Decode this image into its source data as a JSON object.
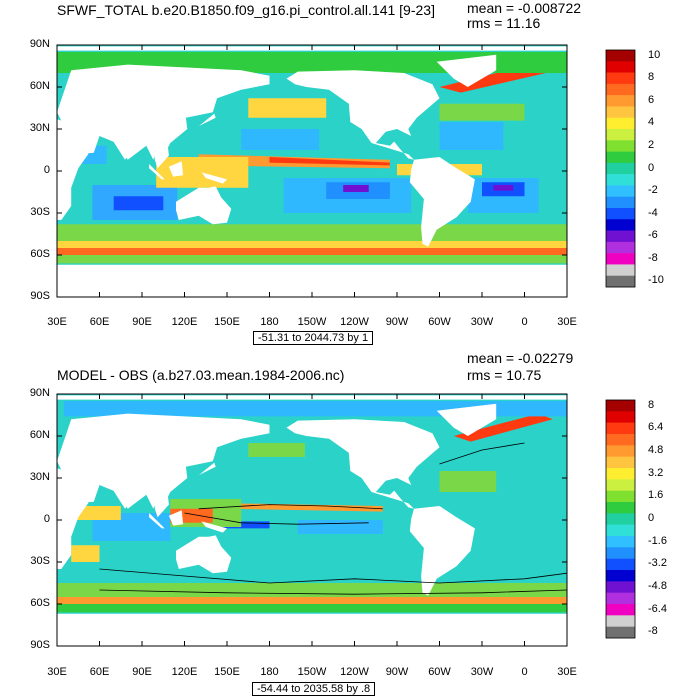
{
  "chart_data": [
    {
      "type": "heatmap",
      "title": "SFWF_TOTAL b.e20.B1850.f09_g16.pi_control.all.141 [9-23]",
      "mean": "mean = -0.008722",
      "rms": "rms = 11.16",
      "range_note": "-51.31 to 2044.73 by 1",
      "lat_ticks": [
        "90N",
        "60N",
        "30N",
        "0",
        "30S",
        "60S",
        "90S"
      ],
      "lon_ticks": [
        "30E",
        "60E",
        "90E",
        "120E",
        "150E",
        "180",
        "150W",
        "120W",
        "90W",
        "60W",
        "30W",
        "0",
        "30E"
      ],
      "colorbar_labels": [
        "10",
        "8",
        "6",
        "4",
        "2",
        "0",
        "-2",
        "-4",
        "-6",
        "-8",
        "-10"
      ],
      "colorbar_colors": [
        "#a50000",
        "#e00000",
        "#ff3a10",
        "#ff6a20",
        "#ff9a30",
        "#ffc440",
        "#ffee30",
        "#ccf040",
        "#80e030",
        "#30cc40",
        "#20d0a0",
        "#30e0d8",
        "#30c0ff",
        "#2090ff",
        "#1050ff",
        "#0000d0",
        "#7010d0",
        "#b030e0",
        "#f000c0",
        "#d0d0d0",
        "#707070"
      ],
      "xlim": [
        30,
        390
      ],
      "ylim": [
        -90,
        90
      ]
    },
    {
      "type": "heatmap",
      "title": "MODEL - OBS (a.b27.03.mean.1984-2006.nc)",
      "mean": "mean = -0.02279",
      "rms": "rms = 10.75",
      "range_note": "-54.44 to 2035.58 by .8",
      "lat_ticks": [
        "90N",
        "60N",
        "30N",
        "0",
        "30S",
        "60S",
        "90S"
      ],
      "lon_ticks": [
        "30E",
        "60E",
        "90E",
        "120E",
        "150E",
        "180",
        "150W",
        "120W",
        "90W",
        "60W",
        "30W",
        "0",
        "30E"
      ],
      "colorbar_labels": [
        "8",
        "6.4",
        "4.8",
        "3.2",
        "1.6",
        "0",
        "-1.6",
        "-3.2",
        "-4.8",
        "-6.4",
        "-8"
      ],
      "colorbar_colors": [
        "#a50000",
        "#e00000",
        "#ff3a10",
        "#ff6a20",
        "#ff9a30",
        "#ffc440",
        "#ffee30",
        "#ccf040",
        "#80e030",
        "#30cc40",
        "#20d0a0",
        "#30e0d8",
        "#30c0ff",
        "#2090ff",
        "#1050ff",
        "#0000d0",
        "#7010d0",
        "#b030e0",
        "#f000c0",
        "#d0d0d0",
        "#707070"
      ],
      "xlim": [
        30,
        390
      ],
      "ylim": [
        -90,
        90
      ]
    }
  ]
}
